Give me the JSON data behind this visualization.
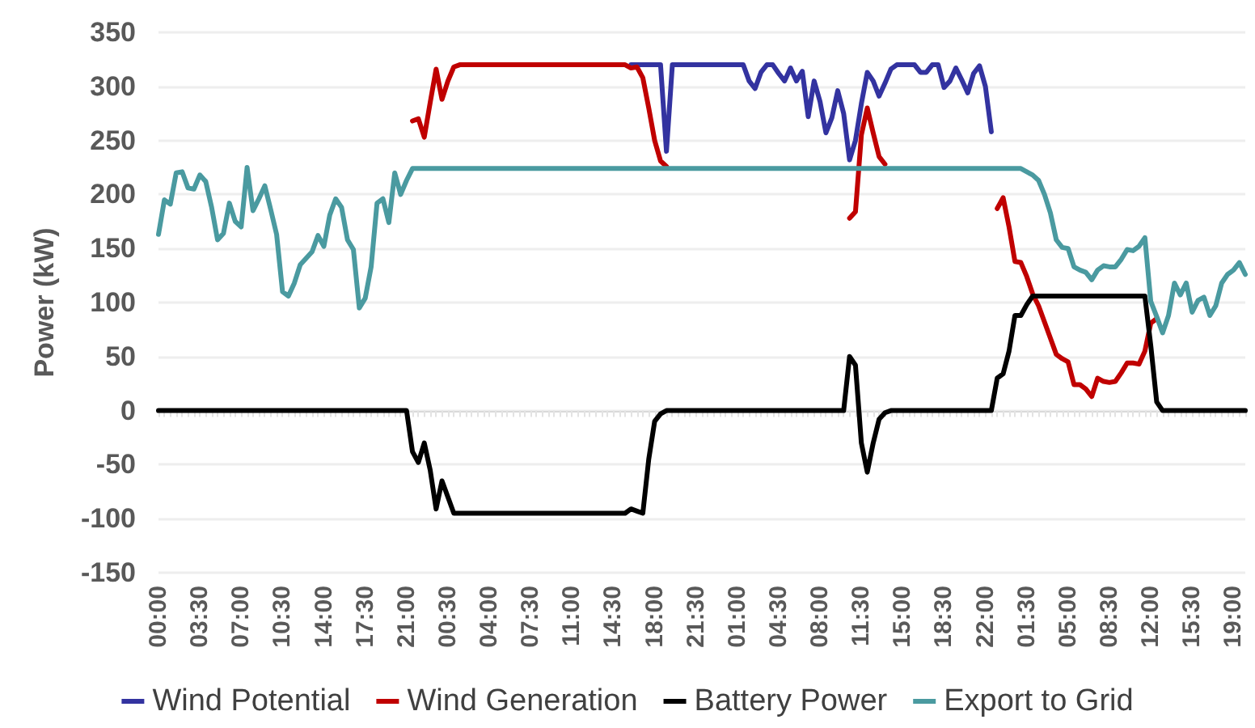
{
  "chart_data": {
    "type": "line",
    "ylabel": "Power (kW)",
    "categories": [
      "00:00",
      null,
      null,
      null,
      null,
      null,
      null,
      "03:30",
      null,
      null,
      null,
      null,
      null,
      null,
      "07:00",
      null,
      null,
      null,
      null,
      null,
      null,
      "10:30",
      null,
      null,
      null,
      null,
      null,
      null,
      "14:00",
      null,
      null,
      null,
      null,
      null,
      null,
      "17:30",
      null,
      null,
      null,
      null,
      null,
      null,
      "21:00",
      null,
      null,
      null,
      null,
      null,
      null,
      "00:30",
      null,
      null,
      null,
      null,
      null,
      null,
      "04:00",
      null,
      null,
      null,
      null,
      null,
      null,
      "07:30",
      null,
      null,
      null,
      null,
      null,
      null,
      "11:00",
      null,
      null,
      null,
      null,
      null,
      null,
      "14:30",
      null,
      null,
      null,
      null,
      null,
      null,
      "18:00",
      null,
      null,
      null,
      null,
      null,
      null,
      "21:30",
      null,
      null,
      null,
      null,
      null,
      null,
      "01:00",
      null,
      null,
      null,
      null,
      null,
      null,
      "04:30",
      null,
      null,
      null,
      null,
      null,
      null,
      "08:00",
      null,
      null,
      null,
      null,
      null,
      null,
      "11:30",
      null,
      null,
      null,
      null,
      null,
      null,
      "15:00",
      null,
      null,
      null,
      null,
      null,
      null,
      "18:30",
      null,
      null,
      null,
      null,
      null,
      null,
      "22:00",
      null,
      null,
      null,
      null,
      null,
      null,
      "01:30",
      null,
      null,
      null,
      null,
      null,
      null,
      "05:00",
      null,
      null,
      null,
      null,
      null,
      null,
      "08:30",
      null,
      null,
      null,
      null,
      null,
      null,
      "12:00",
      null,
      null,
      null,
      null,
      null,
      null,
      "15:30",
      null,
      null,
      null,
      null,
      null,
      null,
      "19:00",
      null,
      null
    ],
    "ylim": [
      -150,
      350
    ],
    "yticks": [
      -150,
      -100,
      -50,
      0,
      50,
      100,
      150,
      200,
      250,
      300,
      350
    ],
    "grid": "y",
    "legend": "bottom",
    "marker": "none",
    "line_style": "solid",
    "series": [
      {
        "name": "Wind Potential",
        "color": "#3333a0",
        "values": [
          null,
          null,
          null,
          null,
          null,
          null,
          null,
          null,
          null,
          null,
          null,
          null,
          null,
          null,
          null,
          null,
          null,
          null,
          null,
          null,
          null,
          null,
          null,
          null,
          null,
          null,
          null,
          null,
          null,
          null,
          null,
          null,
          null,
          null,
          null,
          null,
          null,
          null,
          null,
          null,
          null,
          null,
          null,
          null,
          null,
          null,
          null,
          null,
          null,
          null,
          null,
          null,
          null,
          null,
          null,
          null,
          null,
          null,
          null,
          null,
          null,
          null,
          null,
          null,
          null,
          null,
          null,
          null,
          null,
          null,
          null,
          null,
          null,
          null,
          null,
          null,
          null,
          null,
          null,
          null,
          320,
          320,
          320,
          320,
          320,
          320,
          240,
          320,
          320,
          320,
          320,
          320,
          320,
          320,
          320,
          320,
          320,
          320,
          320,
          320,
          305,
          298,
          313,
          320,
          320,
          312,
          305,
          317,
          305,
          314,
          272,
          305,
          286,
          257,
          271,
          296,
          275,
          232,
          250,
          284,
          313,
          305,
          291,
          303,
          316,
          320,
          320,
          320,
          320,
          313,
          313,
          320,
          320,
          299,
          305,
          317,
          306,
          294,
          312,
          319,
          300,
          258,
          null,
          null,
          null,
          null,
          null,
          null,
          null,
          null,
          null,
          null,
          null,
          null,
          null,
          null,
          null,
          null,
          null,
          null,
          null,
          null,
          null,
          null,
          null,
          null,
          null,
          null,
          null,
          null,
          null,
          null,
          null,
          null,
          null,
          null,
          null,
          null,
          null,
          null,
          null,
          null,
          null,
          null,
          null
        ]
      },
      {
        "name": "Wind Generation",
        "color": "#c00000",
        "values": [
          null,
          null,
          null,
          null,
          null,
          null,
          null,
          null,
          null,
          null,
          null,
          null,
          null,
          null,
          null,
          null,
          null,
          null,
          null,
          null,
          null,
          null,
          null,
          null,
          null,
          null,
          null,
          null,
          null,
          null,
          null,
          null,
          null,
          null,
          null,
          null,
          null,
          null,
          null,
          null,
          null,
          null,
          null,
          268,
          270,
          253,
          285,
          316,
          288,
          305,
          318,
          320,
          320,
          320,
          320,
          320,
          320,
          320,
          320,
          320,
          320,
          320,
          320,
          320,
          320,
          320,
          320,
          320,
          320,
          320,
          320,
          320,
          320,
          320,
          320,
          320,
          320,
          320,
          320,
          320,
          317,
          318,
          308,
          280,
          250,
          231,
          226,
          null,
          null,
          null,
          null,
          null,
          null,
          null,
          null,
          null,
          null,
          null,
          null,
          null,
          null,
          null,
          null,
          null,
          null,
          null,
          null,
          null,
          null,
          null,
          null,
          null,
          null,
          null,
          null,
          null,
          null,
          178,
          184,
          255,
          280,
          257,
          235,
          228,
          null,
          null,
          null,
          null,
          null,
          null,
          null,
          null,
          null,
          null,
          null,
          null,
          null,
          null,
          null,
          null,
          null,
          null,
          187,
          197,
          170,
          138,
          137,
          124,
          108,
          97,
          82,
          67,
          52,
          48,
          45,
          24,
          24,
          20,
          13,
          30,
          27,
          26,
          27,
          35,
          44,
          44,
          43,
          55,
          81,
          85,
          null,
          null,
          null,
          null,
          null,
          null,
          null,
          null,
          null,
          null,
          null,
          null,
          null,
          null,
          null
        ]
      },
      {
        "name": "Battery Power",
        "color": "#000000",
        "values": [
          0,
          0,
          0,
          0,
          0,
          0,
          0,
          0,
          0,
          0,
          0,
          0,
          0,
          0,
          0,
          0,
          0,
          0,
          0,
          0,
          0,
          0,
          0,
          0,
          0,
          0,
          0,
          0,
          0,
          0,
          0,
          0,
          0,
          0,
          0,
          0,
          0,
          0,
          0,
          0,
          0,
          0,
          0,
          -38,
          -48,
          -30,
          -55,
          -91,
          -65,
          -80,
          -95,
          -95,
          -95,
          -95,
          -95,
          -95,
          -95,
          -95,
          -95,
          -95,
          -95,
          -95,
          -95,
          -95,
          -95,
          -95,
          -95,
          -95,
          -95,
          -95,
          -95,
          -95,
          -95,
          -95,
          -95,
          -95,
          -95,
          -95,
          -95,
          -95,
          -91,
          -93,
          -95,
          -45,
          -10,
          -3,
          0,
          0,
          0,
          0,
          0,
          0,
          0,
          0,
          0,
          0,
          0,
          0,
          0,
          0,
          0,
          0,
          0,
          0,
          0,
          0,
          0,
          0,
          0,
          0,
          0,
          0,
          0,
          0,
          0,
          0,
          0,
          50,
          42,
          -30,
          -57,
          -30,
          -8,
          -2,
          0,
          0,
          0,
          0,
          0,
          0,
          0,
          0,
          0,
          0,
          0,
          0,
          0,
          0,
          0,
          0,
          0,
          0,
          30,
          34,
          55,
          88,
          88,
          98,
          106,
          106,
          106,
          106,
          106,
          106,
          106,
          106,
          106,
          106,
          106,
          106,
          106,
          106,
          106,
          106,
          106,
          106,
          106,
          106,
          60,
          8,
          0,
          0,
          0,
          0,
          0,
          0,
          0,
          0,
          0,
          0,
          0,
          0,
          0,
          0,
          0
        ]
      },
      {
        "name": "Export to Grid",
        "color": "#4a9aa0",
        "values": [
          163,
          195,
          191,
          220,
          221,
          206,
          205,
          218,
          212,
          188,
          158,
          164,
          192,
          175,
          170,
          225,
          185,
          196,
          208,
          186,
          163,
          110,
          106,
          118,
          135,
          141,
          147,
          162,
          152,
          181,
          196,
          188,
          158,
          149,
          95,
          104,
          133,
          192,
          196,
          174,
          220,
          200,
          213,
          224,
          224,
          224,
          224,
          224,
          224,
          224,
          224,
          224,
          224,
          224,
          224,
          224,
          224,
          224,
          224,
          224,
          224,
          224,
          224,
          224,
          224,
          224,
          224,
          224,
          224,
          224,
          224,
          224,
          224,
          224,
          224,
          224,
          224,
          224,
          224,
          224,
          224,
          224,
          224,
          224,
          224,
          224,
          224,
          224,
          224,
          224,
          224,
          224,
          224,
          224,
          224,
          224,
          224,
          224,
          224,
          224,
          224,
          224,
          224,
          224,
          224,
          224,
          224,
          224,
          224,
          224,
          224,
          224,
          224,
          224,
          224,
          224,
          224,
          224,
          224,
          224,
          224,
          224,
          224,
          224,
          224,
          224,
          224,
          224,
          224,
          224,
          224,
          224,
          224,
          224,
          224,
          224,
          224,
          224,
          224,
          224,
          224,
          224,
          224,
          224,
          224,
          224,
          224,
          221,
          218,
          213,
          200,
          183,
          158,
          151,
          150,
          133,
          130,
          128,
          121,
          130,
          134,
          133,
          133,
          140,
          149,
          148,
          152,
          160,
          101,
          87,
          72,
          88,
          118,
          107,
          118,
          91,
          102,
          105,
          88,
          97,
          118,
          126,
          130,
          137,
          126
        ]
      }
    ]
  }
}
